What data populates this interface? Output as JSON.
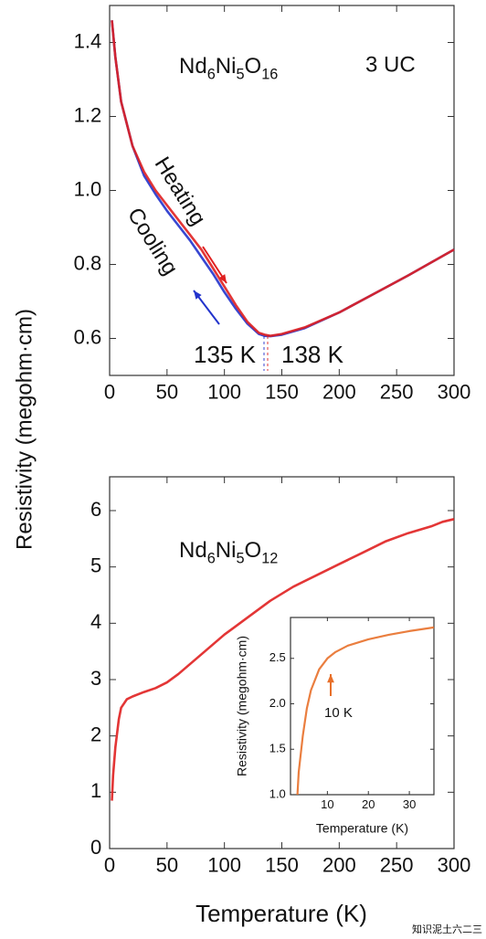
{
  "figure": {
    "ylabel": "Resistivity (megohm·cm)",
    "xlabel": "Temperature (K)",
    "watermark": "知识泥土六二三"
  },
  "chart_data": [
    {
      "type": "line",
      "title_parts": [
        "Nd",
        "6",
        "Ni",
        "5",
        "O",
        "16"
      ],
      "annotations": [
        "3 UC",
        "Heating",
        "Cooling",
        "135 K",
        "138 K"
      ],
      "x": [
        2,
        5,
        10,
        20,
        30,
        40,
        50,
        60,
        70,
        80,
        90,
        100,
        110,
        120,
        130,
        135,
        140,
        150,
        170,
        200,
        230,
        260,
        300
      ],
      "series": [
        {
          "name": "Cooling",
          "color": "#2233cc",
          "values": [
            1.46,
            1.36,
            1.24,
            1.12,
            1.04,
            0.99,
            0.945,
            0.905,
            0.865,
            0.82,
            0.775,
            0.725,
            0.68,
            0.64,
            0.612,
            0.607,
            0.606,
            0.61,
            0.628,
            0.67,
            0.72,
            0.77,
            0.84
          ]
        },
        {
          "name": "Heating",
          "color": "#e02020",
          "values": [
            1.46,
            1.36,
            1.24,
            1.12,
            1.05,
            1.0,
            0.96,
            0.92,
            0.88,
            0.84,
            0.79,
            0.74,
            0.69,
            0.645,
            0.615,
            0.61,
            0.607,
            0.612,
            0.63,
            0.67,
            0.72,
            0.77,
            0.84
          ]
        }
      ],
      "xlim": [
        0,
        300
      ],
      "xticks": [
        0,
        50,
        100,
        150,
        200,
        250,
        300
      ],
      "ylim": [
        0.5,
        1.5
      ],
      "yticks": [
        0.6,
        0.8,
        {
          "value": 1,
          "label": "1.0"
        },
        1.2,
        1.4
      ],
      "grid": false
    },
    {
      "type": "line",
      "title_parts": [
        "Nd",
        "6",
        "Ni",
        "5",
        "O",
        "12"
      ],
      "x": [
        2,
        3,
        5,
        8,
        10,
        15,
        20,
        30,
        40,
        50,
        60,
        80,
        100,
        120,
        140,
        160,
        180,
        200,
        220,
        240,
        260,
        280,
        290,
        300
      ],
      "series": [
        {
          "name": "Nd6Ni5O12",
          "color": "#e02020",
          "values": [
            0.85,
            1.3,
            1.8,
            2.3,
            2.5,
            2.65,
            2.7,
            2.78,
            2.85,
            2.95,
            3.1,
            3.45,
            3.8,
            4.1,
            4.4,
            4.65,
            4.85,
            5.05,
            5.25,
            5.45,
            5.6,
            5.72,
            5.8,
            5.85
          ]
        }
      ],
      "xlim": [
        0,
        300
      ],
      "xticks": [
        0,
        50,
        100,
        150,
        200,
        250,
        300
      ],
      "ylim": [
        0,
        6.6
      ],
      "yticks": [
        0,
        1,
        2,
        3,
        4,
        5,
        6
      ],
      "grid": false
    },
    {
      "type": "line",
      "xlabel": "Temperature (K)",
      "ylabel": "Resistivity (megohm·cm)",
      "annotations": [
        "10 K"
      ],
      "x": [
        2.7,
        3,
        4,
        5,
        6,
        8,
        10,
        12,
        15,
        20,
        25,
        30,
        36
      ],
      "series": [
        {
          "name": "inset",
          "color": "#e8702a",
          "values": [
            1.0,
            1.25,
            1.65,
            1.95,
            2.15,
            2.38,
            2.5,
            2.57,
            2.64,
            2.71,
            2.76,
            2.8,
            2.84
          ]
        }
      ],
      "xlim": [
        1,
        36
      ],
      "xticks": [
        10,
        20,
        30
      ],
      "ylim": [
        1,
        2.95
      ],
      "yticks": [
        {
          "value": 1,
          "label": "1.0"
        },
        1.5,
        {
          "value": 2,
          "label": "2.0"
        },
        2.5
      ],
      "grid": false
    }
  ]
}
